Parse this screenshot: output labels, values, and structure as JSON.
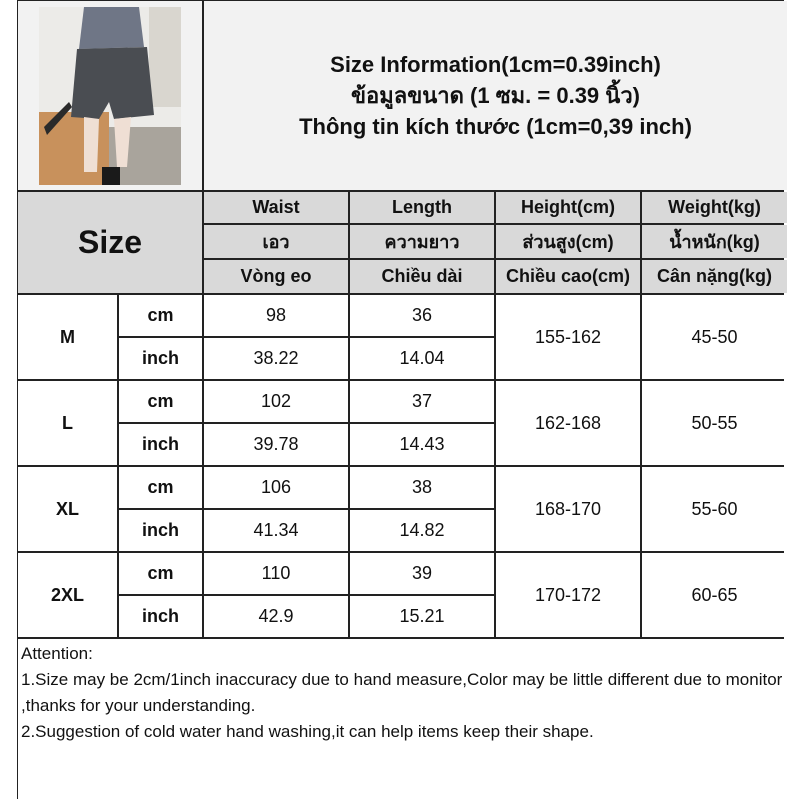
{
  "header": {
    "title_lines": [
      "Size Information(1cm=0.39inch)",
      "ข้อมูลขนาด (1 ซม. = 0.39 นิ้ว)",
      "Thông tin kích thước (1cm=0,39 inch)"
    ]
  },
  "product_image": {
    "alt": "model wearing grey patterned shorts"
  },
  "size_label": "Size",
  "columns": [
    [
      "Waist",
      "เอว",
      "Vòng eo"
    ],
    [
      "Length",
      "ความยาว",
      "Chiều dài"
    ],
    [
      "Height(cm)",
      "ส่วนสูง(cm)",
      "Chiều cao(cm)"
    ],
    [
      "Weight(kg)",
      "น้ำหนัก(kg)",
      "Cân nặng(kg)"
    ]
  ],
  "units": [
    "cm",
    "inch"
  ],
  "rows": [
    {
      "size": "M",
      "waist": [
        "98",
        "38.22"
      ],
      "length": [
        "36",
        "14.04"
      ],
      "height": "155-162",
      "weight": "45-50"
    },
    {
      "size": "L",
      "waist": [
        "102",
        "39.78"
      ],
      "length": [
        "37",
        "14.43"
      ],
      "height": "162-168",
      "weight": "50-55"
    },
    {
      "size": "XL",
      "waist": [
        "106",
        "41.34"
      ],
      "length": [
        "38",
        "14.82"
      ],
      "height": "168-170",
      "weight": "55-60"
    },
    {
      "size": "2XL",
      "waist": [
        "110",
        "42.9"
      ],
      "length": [
        "39",
        "15.21"
      ],
      "height": "170-172",
      "weight": "60-65"
    }
  ],
  "attention": {
    "heading": "Attention:",
    "lines": [
      "1.Size may be 2cm/1inch inaccuracy due to hand measure,Color may be little different due to monitor ,thanks for your understanding.",
      "2.Suggestion of cold water hand washing,it can help items keep their shape."
    ]
  }
}
